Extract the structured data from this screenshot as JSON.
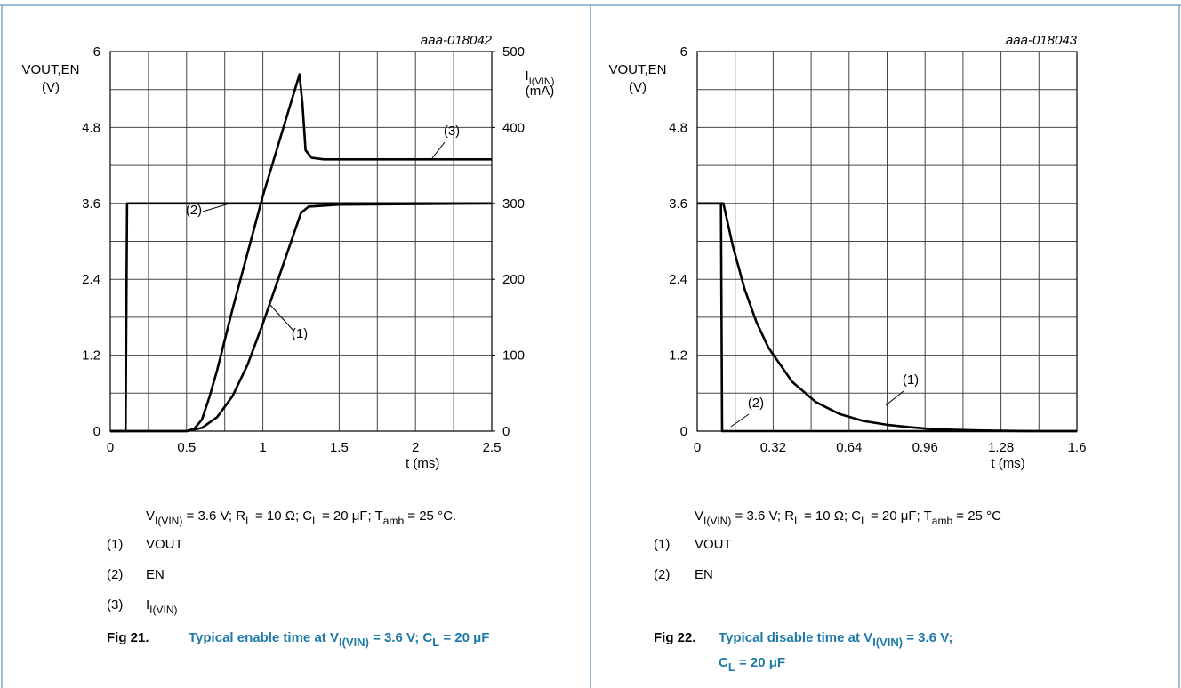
{
  "chart_data": [
    {
      "type": "line",
      "figure_id": "aaa-018042",
      "ylabel": [
        [
          "VOUT,EN"
        ],
        [
          "(V)"
        ]
      ],
      "y2label": [
        [
          "I",
          "I(VIN)"
        ],
        [
          "(mA)"
        ]
      ],
      "xlabel": "t (ms)",
      "xlim": [
        0,
        2.5
      ],
      "xticks": [
        0,
        0.5,
        1,
        1.5,
        2,
        2.5
      ],
      "ylim": [
        0,
        6
      ],
      "yticks": [
        0,
        1.2,
        2.4,
        3.6,
        4.8,
        6
      ],
      "y2lim": [
        0,
        500
      ],
      "y2ticks": [
        0,
        100,
        200,
        300,
        400,
        500
      ],
      "grid": true,
      "series": [
        {
          "label": "(1)",
          "name": [
            "VOUT"
          ],
          "color": "#000000",
          "x": [
            0,
            0.5,
            0.6,
            0.7,
            0.8,
            0.9,
            1.0,
            1.1,
            1.2,
            1.25,
            1.3,
            1.5,
            2.5
          ],
          "values": [
            0,
            0,
            0.05,
            0.22,
            0.55,
            1.05,
            1.7,
            2.4,
            3.1,
            3.45,
            3.55,
            3.58,
            3.6
          ]
        },
        {
          "label": "(2)",
          "name": [
            "EN"
          ],
          "color": "#000000",
          "x": [
            0,
            0.1,
            0.11,
            2.5
          ],
          "values": [
            0,
            0,
            3.6,
            3.6
          ]
        },
        {
          "label": "(3)",
          "name": [
            "I",
            "I(VIN)"
          ],
          "color": "#000000",
          "axis": "y2",
          "x": [
            0,
            0.5,
            0.55,
            0.6,
            0.65,
            0.7,
            0.8,
            1.0,
            1.24,
            1.26,
            1.28,
            1.32,
            1.4,
            2.5
          ],
          "values": [
            0,
            0,
            3,
            15,
            45,
            80,
            160,
            310,
            470,
            430,
            370,
            360,
            358,
            358
          ]
        }
      ],
      "conditions": [
        "V",
        "I(VIN)",
        " = 3.6 V; R",
        "L",
        " = 10 Ω; C",
        "L",
        " = 20 μF; T",
        "amb",
        " = 25 °C."
      ],
      "caption": {
        "number": "Fig 21.",
        "lines": [
          [
            "Typical enable time at V",
            "I(VIN)",
            " = 3.6 V; C",
            "L",
            " = 20 μF"
          ]
        ]
      }
    },
    {
      "type": "line",
      "figure_id": "aaa-018043",
      "ylabel": [
        [
          "VOUT,EN"
        ],
        [
          "(V)"
        ]
      ],
      "xlabel": "t (ms)",
      "xlim": [
        0,
        1.6
      ],
      "xticks": [
        0,
        0.32,
        0.64,
        0.96,
        1.28,
        1.6
      ],
      "ylim": [
        0,
        6
      ],
      "yticks": [
        0,
        1.2,
        2.4,
        3.6,
        4.8,
        6
      ],
      "grid": true,
      "series": [
        {
          "label": "(1)",
          "name": [
            "VOUT"
          ],
          "color": "#000000",
          "x": [
            0,
            0.11,
            0.15,
            0.2,
            0.25,
            0.3,
            0.4,
            0.5,
            0.6,
            0.7,
            0.8,
            0.9,
            1.0,
            1.2,
            1.4,
            1.6
          ],
          "values": [
            3.6,
            3.6,
            2.93,
            2.24,
            1.72,
            1.32,
            0.78,
            0.46,
            0.27,
            0.16,
            0.1,
            0.06,
            0.03,
            0.01,
            0,
            0
          ]
        },
        {
          "label": "(2)",
          "name": [
            "EN"
          ],
          "color": "#000000",
          "x": [
            0,
            0.1,
            0.105,
            1.6
          ],
          "values": [
            3.6,
            3.6,
            0,
            0
          ]
        }
      ],
      "conditions": [
        "V",
        "I(VIN)",
        " = 3.6 V; R",
        "L",
        " = 10 Ω; C",
        "L",
        " = 20 μF; T",
        "amb",
        " = 25 °C"
      ],
      "caption": {
        "number": "Fig 22.",
        "lines": [
          [
            "Typical disable time at V",
            "I(VIN)",
            " = 3.6 V;"
          ],
          [
            "C",
            "L",
            " = 20 μF"
          ]
        ]
      }
    }
  ]
}
